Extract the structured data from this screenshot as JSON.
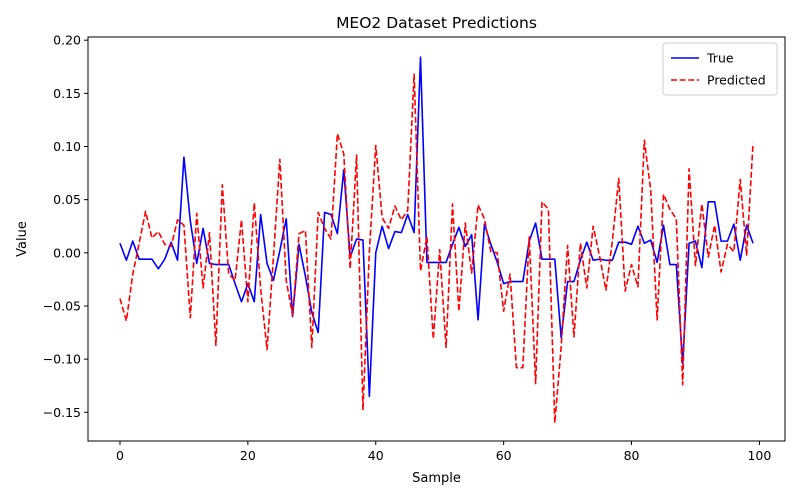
{
  "chart_data": {
    "type": "line",
    "title": "MEO2 Dataset Predictions",
    "xlabel": "Sample",
    "ylabel": "Value",
    "xlim": [
      -5,
      104
    ],
    "ylim": [
      -0.177,
      0.203
    ],
    "xticks": [
      0,
      20,
      40,
      60,
      80,
      100
    ],
    "yticks": [
      -0.15,
      -0.1,
      -0.05,
      0.0,
      0.05,
      0.1,
      0.15,
      0.2
    ],
    "ytick_labels": [
      "−0.15",
      "−0.10",
      "−0.05",
      "0.00",
      "0.05",
      "0.10",
      "0.15",
      "0.20"
    ],
    "xtick_labels": [
      "0",
      "20",
      "40",
      "60",
      "80",
      "100"
    ],
    "legend_position": "top-right",
    "grid": false,
    "x": [
      0,
      1,
      2,
      3,
      4,
      5,
      6,
      7,
      8,
      9,
      10,
      11,
      12,
      13,
      14,
      15,
      16,
      17,
      18,
      19,
      20,
      21,
      22,
      23,
      24,
      25,
      26,
      27,
      28,
      29,
      30,
      31,
      32,
      33,
      34,
      35,
      36,
      37,
      38,
      39,
      40,
      41,
      42,
      43,
      44,
      45,
      46,
      47,
      48,
      49,
      50,
      51,
      52,
      53,
      54,
      55,
      56,
      57,
      58,
      59,
      60,
      61,
      62,
      63,
      64,
      65,
      66,
      67,
      68,
      69,
      70,
      71,
      72,
      73,
      74,
      75,
      76,
      77,
      78,
      79,
      80,
      81,
      82,
      83,
      84,
      85,
      86,
      87,
      88,
      89,
      90,
      91,
      92,
      93,
      94,
      95,
      96,
      97,
      98,
      99
    ],
    "series": [
      {
        "name": "True",
        "color": "#0000ff",
        "style": "solid",
        "values": [
          0.009,
          -0.007,
          0.011,
          -0.006,
          -0.006,
          -0.006,
          -0.015,
          -0.006,
          0.01,
          -0.007,
          0.09,
          0.03,
          -0.01,
          0.023,
          -0.01,
          -0.011,
          -0.011,
          -0.011,
          -0.029,
          -0.046,
          -0.029,
          -0.046,
          0.036,
          -0.01,
          -0.026,
          0.002,
          0.032,
          -0.06,
          0.008,
          -0.022,
          -0.056,
          -0.075,
          0.038,
          0.036,
          0.018,
          0.078,
          -0.004,
          0.013,
          0.012,
          -0.135,
          0.0,
          0.025,
          0.004,
          0.02,
          0.019,
          0.036,
          0.019,
          0.184,
          -0.009,
          -0.009,
          -0.009,
          -0.009,
          0.008,
          0.024,
          0.006,
          0.017,
          -0.063,
          0.027,
          0.008,
          -0.009,
          -0.029,
          -0.027,
          -0.027,
          -0.027,
          0.011,
          0.028,
          -0.006,
          -0.006,
          -0.006,
          -0.08,
          -0.027,
          -0.027,
          -0.007,
          0.01,
          -0.007,
          -0.006,
          -0.007,
          -0.007,
          0.01,
          0.01,
          0.008,
          0.025,
          0.009,
          0.012,
          -0.009,
          0.026,
          -0.011,
          -0.011,
          -0.104,
          0.009,
          0.011,
          -0.014,
          0.048,
          0.048,
          0.011,
          0.011,
          0.027,
          -0.007,
          0.026,
          0.009
        ]
      },
      {
        "name": "Predicted",
        "color": "#ff0000",
        "style": "dashed",
        "values": [
          -0.043,
          -0.064,
          -0.02,
          0.009,
          0.039,
          0.014,
          0.02,
          0.008,
          0.006,
          0.031,
          0.026,
          -0.061,
          0.037,
          -0.033,
          0.019,
          -0.087,
          0.064,
          -0.02,
          -0.026,
          0.031,
          -0.046,
          0.047,
          -0.034,
          -0.091,
          -0.004,
          0.088,
          -0.026,
          -0.059,
          0.018,
          0.021,
          -0.089,
          0.038,
          0.023,
          0.013,
          0.112,
          0.093,
          -0.015,
          0.092,
          -0.148,
          0.001,
          0.101,
          0.033,
          0.023,
          0.044,
          0.031,
          0.04,
          0.168,
          -0.017,
          0.015,
          -0.081,
          0.003,
          -0.089,
          0.046,
          -0.055,
          0.028,
          -0.019,
          0.045,
          0.032,
          0.001,
          0.0,
          -0.055,
          -0.02,
          -0.108,
          -0.108,
          0.015,
          -0.123,
          0.048,
          0.041,
          -0.16,
          -0.088,
          0.007,
          -0.079,
          0.009,
          -0.033,
          0.025,
          -0.003,
          -0.035,
          0.011,
          0.07,
          -0.036,
          -0.011,
          -0.032,
          0.106,
          0.059,
          -0.063,
          0.055,
          0.041,
          0.032,
          -0.124,
          0.079,
          -0.012,
          0.046,
          -0.004,
          0.026,
          -0.018,
          0.008,
          0.001,
          0.069,
          -0.002,
          0.103
        ]
      }
    ]
  }
}
